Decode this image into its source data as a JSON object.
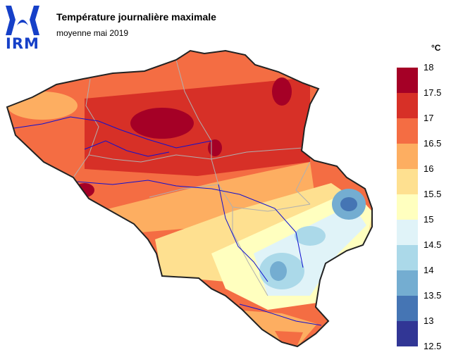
{
  "logo": {
    "text": "IRM"
  },
  "map": {
    "title": "Température journalière maximale",
    "subtitle": "moyenne mai 2019",
    "legend": {
      "unit": "°C",
      "ticks": [
        "18",
        "17.5",
        "17",
        "16.5",
        "16",
        "15.5",
        "15",
        "14.5",
        "14",
        "13.5",
        "13",
        "12.5"
      ],
      "colors": [
        "#a50026",
        "#d73027",
        "#f46d43",
        "#fdae61",
        "#fee090",
        "#ffffbf",
        "#e0f3f8",
        "#abd9e9",
        "#74add1",
        "#4575b4",
        "#313695"
      ]
    }
  },
  "chart_data": {
    "type": "heatmap",
    "title": "Température journalière maximale",
    "subtitle": "moyenne mai 2019",
    "unit": "°C",
    "scale_min": 12.5,
    "scale_max": 18,
    "scale_step": 0.5,
    "legend_placement": "right"
  }
}
